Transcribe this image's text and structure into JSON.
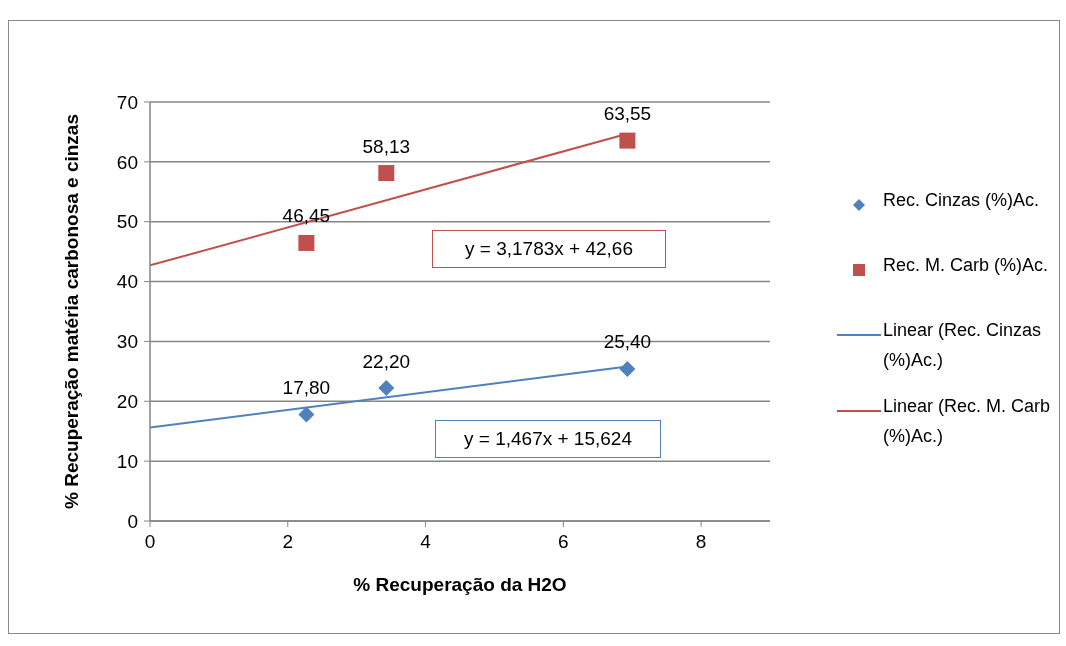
{
  "chart_data": {
    "type": "scatter",
    "xlabel": "% Recuperação da H2O",
    "ylabel": "% Recuperação matéria carbonosa e cinzas",
    "xlim": [
      0,
      9
    ],
    "xticks": [
      0,
      2,
      4,
      6,
      8
    ],
    "ylim": [
      0,
      70
    ],
    "yticks": [
      0,
      10,
      20,
      30,
      40,
      50,
      60,
      70
    ],
    "grid": "y",
    "legend": "right",
    "series": [
      {
        "name": "Rec. Cinzas (%)Ac.",
        "color": "#4f81bd",
        "marker": "diamond",
        "x": [
          2.27,
          3.43,
          6.93
        ],
        "values": [
          17.8,
          22.2,
          25.4
        ],
        "value_labels": [
          "17,80",
          "22,20",
          "25,40"
        ]
      },
      {
        "name": "Rec. M. Carb (%)Ac.",
        "color": "#c0504d",
        "marker": "square",
        "x": [
          2.27,
          3.43,
          6.93
        ],
        "values": [
          46.45,
          58.13,
          63.55
        ],
        "value_labels": [
          "46,45",
          "58,13",
          "63,55"
        ]
      },
      {
        "name": "Linear (Rec. Cinzas (%)Ac.)",
        "type": "line",
        "color": "#4f81bd",
        "marker": "none",
        "x": [
          0,
          6.93
        ],
        "values": [
          15.6,
          25.8
        ]
      },
      {
        "name": "Linear (Rec. M. Carb (%)Ac.)",
        "type": "line",
        "color": "#c0504d",
        "marker": "none",
        "x": [
          0,
          6.93
        ],
        "values": [
          42.7,
          64.7
        ]
      }
    ],
    "annotations": [
      "y = 3,1783x + 42,66",
      "y = 1,467x + 15,624"
    ]
  }
}
